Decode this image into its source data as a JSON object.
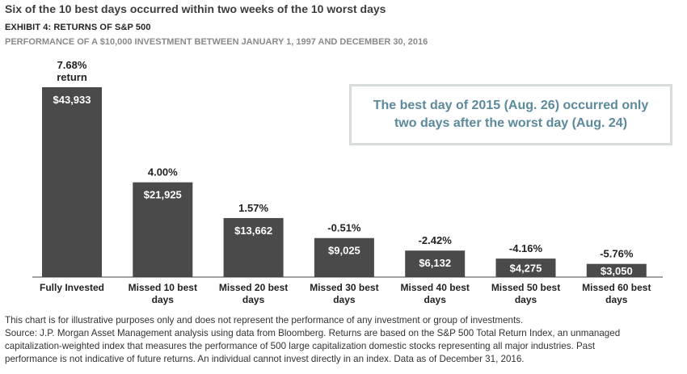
{
  "headline": "Six of the 10 best days occurred within two weeks of the 10 worst days",
  "exhibit_title": "EXHIBIT 4: RETURNS OF S&P 500",
  "subtitle": "PERFORMANCE OF A $10,000 INVESTMENT BETWEEN JANUARY 1, 1997 AND DECEMBER 30, 2016",
  "callout": {
    "line1": "The best day of 2015 (Aug. 26) occurred only",
    "line2": "two days after the worst day (Aug. 24)"
  },
  "footnotes": [
    "This chart is for illustrative purposes only and does not represent the performance of any investment or group of investments.",
    "Source: J.P. Morgan Asset Management analysis using data from Bloomberg. Returns are based on the S&P 500 Total Return Index, an unmanaged",
    "capitalization-weighted index that measures the performance of 500 large capitalization domestic stocks representing all major industries. Past",
    "performance is not indicative of future returns. An individual cannot invest directly in an index. Data as of December 31, 2016."
  ],
  "colors": {
    "bar": "#4a4a4a",
    "bar_text": "#ffffff",
    "callout_text": "#5b8a9c",
    "callout_border": "#d9dcdc"
  },
  "chart_data": {
    "type": "bar",
    "categories": [
      [
        "Fully Invested"
      ],
      [
        "Missed 10 best",
        "days"
      ],
      [
        "Missed 20 best",
        "days"
      ],
      [
        "Missed 30 best",
        "days"
      ],
      [
        "Missed 40 best",
        "days"
      ],
      [
        "Missed 50 best",
        "days"
      ],
      [
        "Missed 60 best",
        "days"
      ]
    ],
    "values": [
      43933,
      21925,
      13662,
      9025,
      6132,
      4275,
      3050
    ],
    "value_labels": [
      "$43,933",
      "$21,925",
      "$13,662",
      "$9,025",
      "$6,132",
      "$4,275",
      "$3,050"
    ],
    "return_labels": [
      [
        "7.68%",
        "return"
      ],
      [
        "4.00%"
      ],
      [
        "1.57%"
      ],
      [
        "-0.51%"
      ],
      [
        "-2.42%"
      ],
      [
        "-4.16%"
      ],
      [
        "-5.76%"
      ]
    ],
    "ylim": [
      0,
      45000
    ],
    "grid": false,
    "legend": "none"
  }
}
